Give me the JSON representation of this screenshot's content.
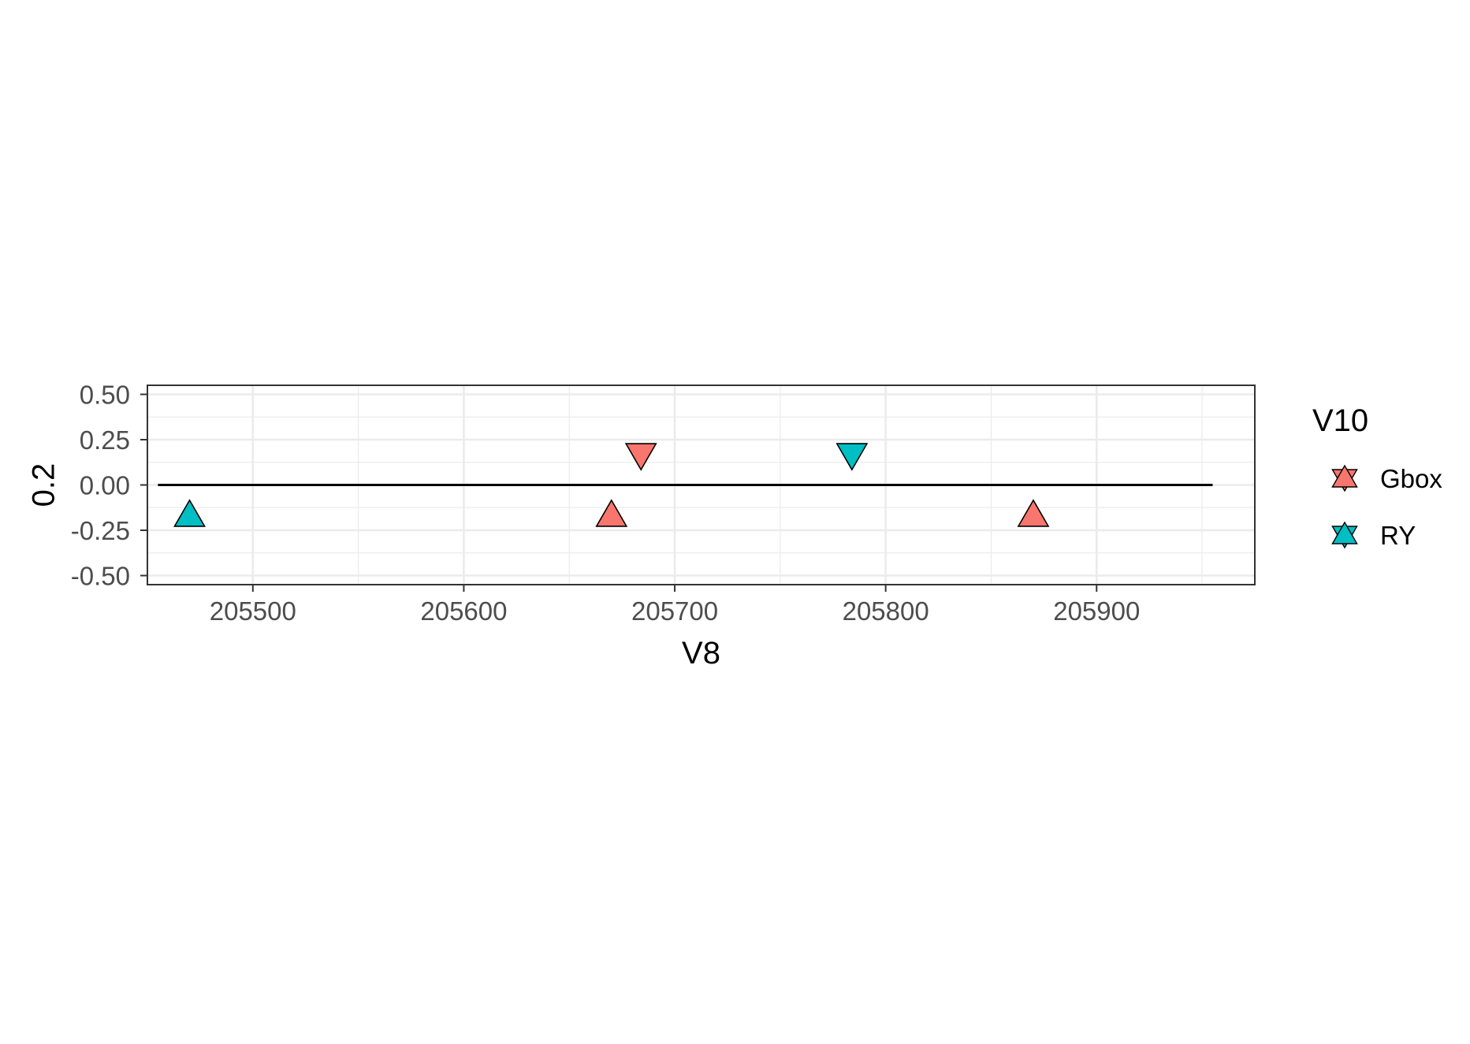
{
  "chart_data": {
    "type": "scatter",
    "xlabel": "V8",
    "ylabel": "0.2",
    "xlim": [
      205450,
      205975
    ],
    "ylim": [
      -0.55,
      0.55
    ],
    "x_ticks": [
      205500,
      205600,
      205700,
      205800,
      205900
    ],
    "x_tick_labels": [
      "205500",
      "205600",
      "205700",
      "205800",
      "205900"
    ],
    "y_ticks": [
      -0.5,
      -0.25,
      0,
      0.25,
      0.5
    ],
    "y_tick_labels": [
      "-0.50",
      "-0.25",
      "0.00",
      "0.25",
      "0.50"
    ],
    "grid": true,
    "baseline": {
      "y": 0,
      "x_start": 205455,
      "x_end": 205955
    },
    "legend": {
      "title": "V10",
      "position": "right",
      "entries": [
        {
          "name": "Gbox",
          "color": "#F8766D"
        },
        {
          "name": "RY",
          "color": "#00BFC4"
        }
      ]
    },
    "series": [
      {
        "name": "Gbox",
        "color": "#F8766D",
        "points": [
          {
            "x": 205684,
            "y": 0.18,
            "shape": "triangle-down"
          },
          {
            "x": 205670,
            "y": -0.18,
            "shape": "triangle-up"
          },
          {
            "x": 205870,
            "y": -0.18,
            "shape": "triangle-up"
          }
        ]
      },
      {
        "name": "RY",
        "color": "#00BFC4",
        "points": [
          {
            "x": 205784,
            "y": 0.18,
            "shape": "triangle-down"
          },
          {
            "x": 205470,
            "y": -0.18,
            "shape": "triangle-up"
          }
        ]
      }
    ]
  }
}
